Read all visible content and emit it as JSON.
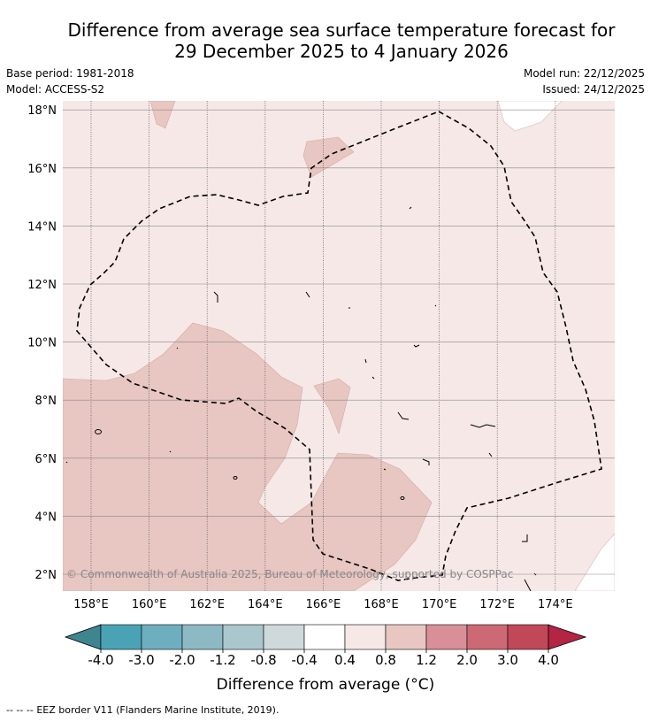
{
  "title": {
    "line1": "Difference from average sea surface temperature forecast for",
    "line2": "29 December 2025 to 4 January 2026"
  },
  "meta": {
    "base_period": "Base period: 1981-2018",
    "model": "Model: ACCESS-S2",
    "model_run": "Model run: 22/12/2025",
    "issued": "Issued: 24/12/2025"
  },
  "map": {
    "copyright": "© Commonwealth of Australia 2025, Bureau of Meteorology, supported by COSPPac",
    "lon_labels": [
      "158°E",
      "160°E",
      "162°E",
      "164°E",
      "166°E",
      "168°E",
      "170°E",
      "172°E",
      "174°E"
    ],
    "lon_values": [
      158,
      160,
      162,
      164,
      166,
      168,
      170,
      172,
      174
    ],
    "lat_labels": [
      "2°N",
      "4°N",
      "6°N",
      "8°N",
      "10°N",
      "12°N",
      "14°N",
      "16°N",
      "18°N"
    ],
    "lat_values": [
      2,
      4,
      6,
      8,
      10,
      12,
      14,
      16,
      18
    ],
    "colors": {
      "band_0_4_to_0_8": "#f5e8e6",
      "band_0_8_to_1_2": "#e8c6c2",
      "below_0_4": "#ffffff"
    }
  },
  "colorbar": {
    "title": "Difference from average (°C)",
    "tick_labels": [
      "-4.0",
      "-3.0",
      "-2.0",
      "-1.2",
      "-0.8",
      "-0.4",
      "0.4",
      "0.8",
      "1.2",
      "2.0",
      "3.0",
      "4.0"
    ],
    "segment_colors": [
      "#4aa3b4",
      "#6dafbf",
      "#8db9c5",
      "#a9c7cc",
      "#cfd9db",
      "#ffffff",
      "#f5e8e6",
      "#e8c6c2",
      "#d88f98",
      "#cc6975",
      "#c14858"
    ],
    "under_color": "#3f8590",
    "over_color": "#b42443"
  },
  "footer": {
    "legend_symbol": "--  --  --",
    "text": "EEZ border V11 (Flanders Marine Institute, 2019)."
  }
}
